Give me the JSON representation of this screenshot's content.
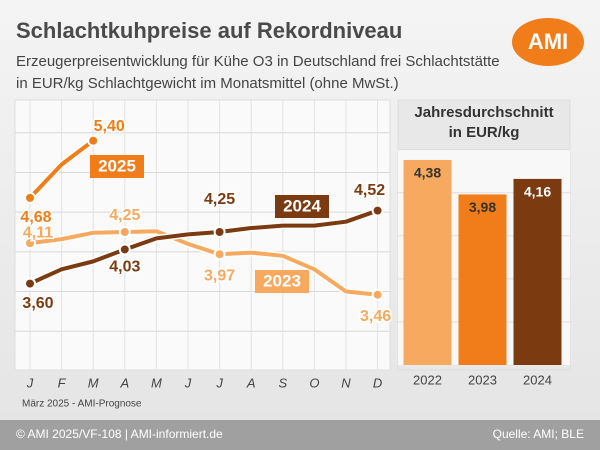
{
  "header": {
    "title": "Schlachtkuhpreise auf Rekordniveau",
    "subtitle": [
      "Erzeugerpreisentwicklung für Kühe O3 in Deutschland frei Schlachtstätte",
      "in EUR/kg Schlachtgewicht im Monatsmittel (ohne MwSt.)"
    ],
    "logo": "AMI"
  },
  "chart_data": [
    {
      "type": "line",
      "categories": [
        "J",
        "F",
        "M",
        "A",
        "M",
        "J",
        "J",
        "A",
        "S",
        "O",
        "N",
        "D"
      ],
      "series": [
        {
          "name": "2023",
          "color": "#f6a95f",
          "values": [
            4.11,
            4.16,
            4.24,
            4.25,
            4.26,
            4.1,
            3.97,
            3.99,
            3.95,
            3.78,
            3.5,
            3.46
          ],
          "value_labels": [
            "4,11",
            null,
            null,
            "4,25",
            null,
            null,
            "3,97",
            null,
            null,
            null,
            null,
            "3,46"
          ]
        },
        {
          "name": "2024",
          "color": "#7b3a10",
          "values": [
            3.6,
            3.78,
            3.88,
            4.03,
            4.17,
            4.22,
            4.25,
            4.3,
            4.33,
            4.33,
            4.38,
            4.52
          ],
          "value_labels": [
            "3,60",
            null,
            null,
            "4,03",
            null,
            null,
            "4,25",
            null,
            null,
            null,
            null,
            "4,52"
          ]
        },
        {
          "name": "2025",
          "color": "#f07d1a",
          "values": [
            4.68,
            5.1,
            5.4,
            null,
            null,
            null,
            null,
            null,
            null,
            null,
            null,
            null
          ],
          "value_labels": [
            "4,68",
            null,
            "5,40",
            null,
            null,
            null,
            null,
            null,
            null,
            null,
            null,
            null
          ]
        }
      ],
      "ylim": [
        2.6,
        5.9
      ],
      "yticks": [
        3,
        3.5,
        4,
        4.5,
        5,
        5.5
      ],
      "grid": true,
      "note": "März 2025 - AMI-Prognose"
    },
    {
      "type": "bar",
      "title": [
        "Jahresdurchschnitt",
        "in EUR/kg"
      ],
      "categories": [
        "2022",
        "2023",
        "2024"
      ],
      "values": [
        4.38,
        3.98,
        4.16
      ],
      "value_labels": [
        "4,38",
        "3,98",
        "4,16"
      ],
      "colors": [
        "#f6a95f",
        "#f07d1a",
        "#7b3a10"
      ],
      "ylim": [
        2,
        4.6
      ],
      "yticks": [
        2.5,
        3,
        3.5,
        4,
        4.5
      ],
      "grid": true
    }
  ],
  "footer": {
    "left": "© AMI 2025/VF-108 | AMI-informiert.de",
    "right": "Quelle: AMI; BLE"
  }
}
